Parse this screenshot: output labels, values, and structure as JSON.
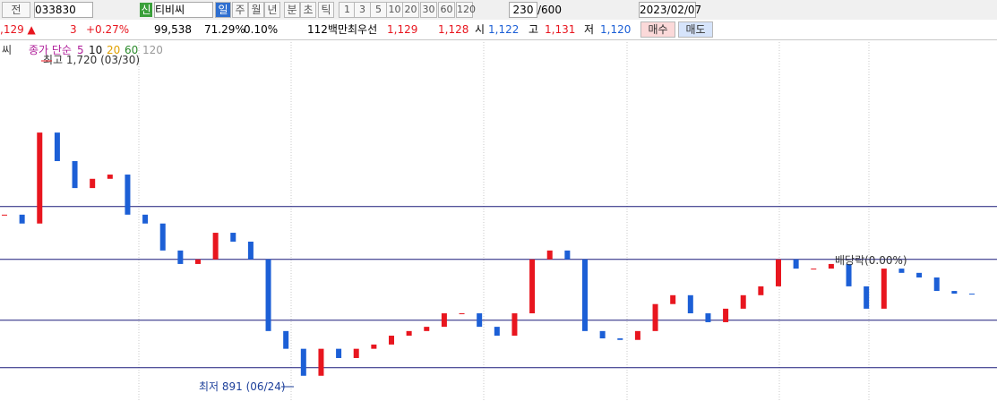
{
  "toolbar": {
    "market": "전",
    "code": "033830",
    "badge": "신",
    "name": "티비씨",
    "periods": [
      "일",
      "주",
      "월",
      "년",
      "분",
      "초",
      "틱"
    ],
    "units": [
      "1",
      "3",
      "5",
      "10",
      "20",
      "30",
      "60",
      "120"
    ],
    "count": "230",
    "max": "/600",
    "date": "2023/02/07"
  },
  "quote": {
    "price": ",129 ▲",
    "change": "3",
    "rate": "+0.27%",
    "volume": "99,538",
    "vol_rate": "71.29%",
    "turnover": "0.10%",
    "amount": "112백만",
    "best_label": "최우선",
    "ask": "1,129",
    "bid": "1,128",
    "open_label": "시",
    "open": "1,122",
    "high_label": "고",
    "high": "1,131",
    "low_label": "저",
    "low": "1,120",
    "buy": "매수",
    "sell": "매도"
  },
  "chart": {
    "type": "candlestick",
    "name_tail": "씨",
    "legend_title": "종가 단순",
    "ma_periods": [
      "5",
      "10",
      "20",
      "60",
      "120"
    ],
    "closes": [
      1337,
      1314,
      1550,
      1476,
      1406,
      1430,
      1441,
      1337,
      1314,
      1244,
      1209,
      1221,
      1290,
      1267,
      1221,
      1035,
      989,
      919,
      989,
      965,
      989,
      1000,
      1023,
      1035,
      1046,
      1081,
      1081,
      1046,
      1023,
      1081,
      1221,
      1244,
      1221,
      1035,
      1016,
      1012,
      1035,
      1105,
      1128,
      1081,
      1058,
      1093,
      1128,
      1151,
      1221,
      1197,
      1197,
      1209,
      1151,
      1093,
      1197,
      1186,
      1174,
      1139,
      1132,
      1131
    ],
    "ylim": [
      850,
      1750
    ],
    "levels": [
      1358,
      1221,
      1063,
      940
    ],
    "up_color": "#e8161f",
    "down_color": "#1c5fd6",
    "annotations": [
      "최고 1,720 (03/30)",
      "최저 891 (06/24)",
      "배당락(0.00%)"
    ]
  }
}
